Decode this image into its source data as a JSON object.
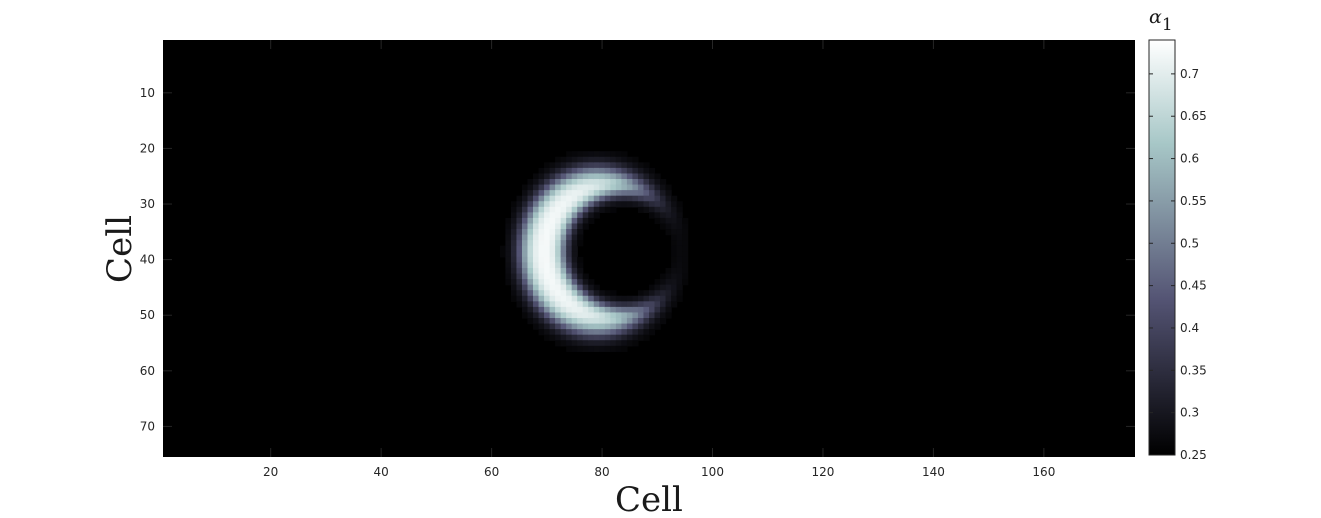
{
  "chart_data": {
    "type": "heatmap",
    "title": "",
    "xlabel": "Cell",
    "ylabel": "Cell",
    "xlim": [
      0.5,
      176.5
    ],
    "ylim": [
      0.5,
      75.5
    ],
    "y_reversed": true,
    "x_ticks": [
      20,
      40,
      60,
      80,
      100,
      120,
      140,
      160
    ],
    "y_ticks": [
      10,
      20,
      30,
      40,
      50,
      60,
      70
    ],
    "colormap": "bone",
    "clim": [
      0.25,
      0.74
    ],
    "colorbar": {
      "label_symbol": "α",
      "label_subscript": "1",
      "ticks": [
        0.25,
        0.3,
        0.35,
        0.4,
        0.45,
        0.5,
        0.55,
        0.6,
        0.65,
        0.7
      ]
    },
    "feature": {
      "shape": "crescent opening to the right",
      "outer_center": [
        79,
        38.5
      ],
      "outer_radii": [
        13.5,
        14.5
      ],
      "inner_center": [
        84,
        38.5
      ],
      "inner_radii": [
        11,
        10.5
      ],
      "peak_value": 0.74,
      "background_value": 0.25
    }
  }
}
